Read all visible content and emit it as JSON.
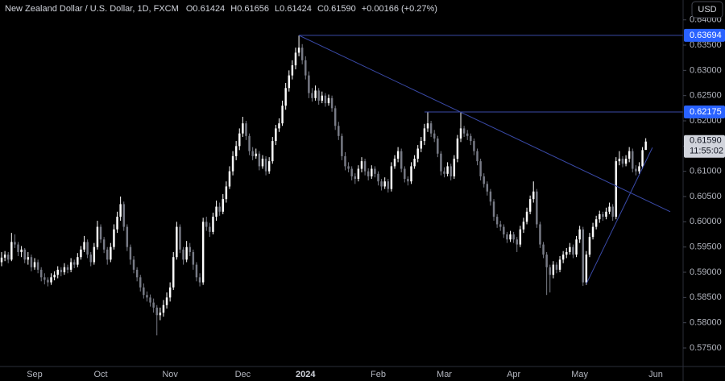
{
  "chart_data": {
    "type": "candlestick",
    "header": {
      "symbol": "New Zealand Dollar / U.S. Dollar, 1D, FXCM",
      "open": "O0.61424",
      "high": "H0.61656",
      "low": "L0.61424",
      "close": "C0.61590",
      "change": "+0.00166 (+0.27%)"
    },
    "currency": "USD",
    "up_color": "#ffffff",
    "down_color": "#787b86",
    "line_color": "#3a4aa8",
    "label_color": "#2962ff",
    "xlim": [
      -0.49,
      206.3
    ],
    "xticks": [
      {
        "value": 10,
        "label": "Sep"
      },
      {
        "value": 30,
        "label": "Oct"
      },
      {
        "value": 51,
        "label": "Nov"
      },
      {
        "value": 73,
        "label": "Dec"
      },
      {
        "value": 92,
        "label": "2024"
      },
      {
        "value": 114,
        "label": "Feb"
      },
      {
        "value": 134,
        "label": "Mar"
      },
      {
        "value": 155,
        "label": "Apr"
      },
      {
        "value": 175,
        "label": "May"
      },
      {
        "value": 198,
        "label": "Jun"
      }
    ],
    "ylim": [
      0.57133,
      0.64394
    ],
    "yticks": [
      {
        "value": 0.575,
        "label": "0.57500"
      },
      {
        "value": 0.58,
        "label": "0.58000"
      },
      {
        "value": 0.585,
        "label": "0.58500"
      },
      {
        "value": 0.59,
        "label": "0.59000"
      },
      {
        "value": 0.595,
        "label": "0.59500"
      },
      {
        "value": 0.6,
        "label": "0.60000"
      },
      {
        "value": 0.605,
        "label": "0.60500"
      },
      {
        "value": 0.61,
        "label": "0.61000"
      },
      {
        "value": 0.615,
        "label": "0.61500"
      },
      {
        "value": 0.62,
        "label": "0.62000"
      },
      {
        "value": 0.625,
        "label": "0.62500"
      },
      {
        "value": 0.63,
        "label": "0.63000"
      },
      {
        "value": 0.635,
        "label": "0.63500"
      },
      {
        "value": 0.64,
        "label": "0.64000"
      }
    ],
    "levels": [
      {
        "start": 90,
        "value": 0.63694
      },
      {
        "start": 128,
        "value": 0.62175
      }
    ],
    "trendlines": [
      {
        "from": [
          90,
          0.63694
        ],
        "to": [
          202.4,
          0.602
        ]
      },
      {
        "from": [
          177,
          0.5877
        ],
        "to": [
          197,
          0.6147
        ]
      }
    ],
    "last_price": {
      "value": 0.6159,
      "label": "0.61590"
    },
    "countdown": "11:55:02",
    "candles": [
      [
        0.592,
        0.594,
        0.5912,
        0.5929
      ],
      [
        0.5929,
        0.5942,
        0.5922,
        0.5935
      ],
      [
        0.5935,
        0.594,
        0.5918,
        0.5925
      ],
      [
        0.5925,
        0.5978,
        0.5922,
        0.596
      ],
      [
        0.596,
        0.5975,
        0.5948,
        0.5955
      ],
      [
        0.5955,
        0.596,
        0.5932,
        0.594
      ],
      [
        0.594,
        0.5952,
        0.593,
        0.5945
      ],
      [
        0.5945,
        0.5948,
        0.5918,
        0.5925
      ],
      [
        0.5925,
        0.594,
        0.5915,
        0.593
      ],
      [
        0.593,
        0.5935,
        0.5902,
        0.591
      ],
      [
        0.591,
        0.5928,
        0.5905,
        0.592
      ],
      [
        0.592,
        0.5925,
        0.5898,
        0.5905
      ],
      [
        0.5905,
        0.591,
        0.5882,
        0.589
      ],
      [
        0.589,
        0.5898,
        0.5876,
        0.5885
      ],
      [
        0.5885,
        0.589,
        0.5872,
        0.588
      ],
      [
        0.588,
        0.5898,
        0.5875,
        0.589
      ],
      [
        0.589,
        0.5902,
        0.5884,
        0.5895
      ],
      [
        0.5895,
        0.5912,
        0.5888,
        0.5905
      ],
      [
        0.5905,
        0.591,
        0.5892,
        0.59
      ],
      [
        0.59,
        0.5918,
        0.5895,
        0.591
      ],
      [
        0.591,
        0.5915,
        0.5898,
        0.5905
      ],
      [
        0.5905,
        0.5928,
        0.59,
        0.592
      ],
      [
        0.592,
        0.5925,
        0.5908,
        0.5915
      ],
      [
        0.5915,
        0.5938,
        0.591,
        0.593
      ],
      [
        0.593,
        0.5952,
        0.5925,
        0.5945
      ],
      [
        0.5945,
        0.5972,
        0.594,
        0.596
      ],
      [
        0.596,
        0.5965,
        0.5928,
        0.5935
      ],
      [
        0.5935,
        0.594,
        0.5912,
        0.592
      ],
      [
        0.592,
        0.5958,
        0.5915,
        0.595
      ],
      [
        0.595,
        0.6002,
        0.5945,
        0.599
      ],
      [
        0.599,
        0.5995,
        0.5958,
        0.5965
      ],
      [
        0.5965,
        0.597,
        0.5938,
        0.5945
      ],
      [
        0.5945,
        0.595,
        0.5915,
        0.5925
      ],
      [
        0.5925,
        0.5958,
        0.592,
        0.595
      ],
      [
        0.595,
        0.5995,
        0.5945,
        0.5985
      ],
      [
        0.5985,
        0.602,
        0.5978,
        0.601
      ],
      [
        0.601,
        0.605,
        0.6002,
        0.6035
      ],
      [
        0.6035,
        0.604,
        0.5982,
        0.599
      ],
      [
        0.599,
        0.5995,
        0.5942,
        0.595
      ],
      [
        0.595,
        0.5955,
        0.5915,
        0.5925
      ],
      [
        0.5925,
        0.5932,
        0.5898,
        0.5905
      ],
      [
        0.5905,
        0.591,
        0.5882,
        0.589
      ],
      [
        0.589,
        0.5895,
        0.5862,
        0.587
      ],
      [
        0.587,
        0.5878,
        0.5848,
        0.5855
      ],
      [
        0.5855,
        0.5862,
        0.5842,
        0.585
      ],
      [
        0.585,
        0.5856,
        0.5832,
        0.584
      ],
      [
        0.584,
        0.5848,
        0.582,
        0.583
      ],
      [
        0.583,
        0.5835,
        0.5775,
        0.5815
      ],
      [
        0.5815,
        0.583,
        0.5805,
        0.582
      ],
      [
        0.582,
        0.5845,
        0.5812,
        0.5835
      ],
      [
        0.5835,
        0.586,
        0.5828,
        0.585
      ],
      [
        0.585,
        0.588,
        0.5842,
        0.587
      ],
      [
        0.587,
        0.594,
        0.5865,
        0.593
      ],
      [
        0.593,
        0.6,
        0.5925,
        0.599
      ],
      [
        0.599,
        0.5995,
        0.5938,
        0.5945
      ],
      [
        0.5945,
        0.595,
        0.5915,
        0.5925
      ],
      [
        0.5925,
        0.5962,
        0.592,
        0.595
      ],
      [
        0.595,
        0.5958,
        0.5932,
        0.594
      ],
      [
        0.594,
        0.5945,
        0.5905,
        0.5915
      ],
      [
        0.5915,
        0.592,
        0.5882,
        0.589
      ],
      [
        0.589,
        0.5898,
        0.5872,
        0.588
      ],
      [
        0.588,
        0.6008,
        0.5875,
        0.6
      ],
      [
        0.6,
        0.601,
        0.5982,
        0.599
      ],
      [
        0.599,
        0.5998,
        0.597,
        0.598
      ],
      [
        0.598,
        0.6018,
        0.5975,
        0.601
      ],
      [
        0.601,
        0.6042,
        0.6002,
        0.603
      ],
      [
        0.603,
        0.6038,
        0.6012,
        0.602
      ],
      [
        0.602,
        0.6055,
        0.6015,
        0.6045
      ],
      [
        0.6045,
        0.608,
        0.6038,
        0.607
      ],
      [
        0.607,
        0.611,
        0.6065,
        0.61
      ],
      [
        0.61,
        0.614,
        0.6092,
        0.613
      ],
      [
        0.613,
        0.616,
        0.6122,
        0.615
      ],
      [
        0.615,
        0.6185,
        0.6142,
        0.6175
      ],
      [
        0.6175,
        0.6208,
        0.6168,
        0.6195
      ],
      [
        0.6195,
        0.62,
        0.6162,
        0.617
      ],
      [
        0.617,
        0.6175,
        0.6132,
        0.614
      ],
      [
        0.614,
        0.6148,
        0.6122,
        0.613
      ],
      [
        0.613,
        0.6145,
        0.6125,
        0.6135
      ],
      [
        0.6135,
        0.614,
        0.6102,
        0.611
      ],
      [
        0.611,
        0.6132,
        0.6105,
        0.6125
      ],
      [
        0.6125,
        0.613,
        0.6092,
        0.61
      ],
      [
        0.61,
        0.6128,
        0.6095,
        0.612
      ],
      [
        0.612,
        0.6168,
        0.6115,
        0.616
      ],
      [
        0.616,
        0.6192,
        0.6152,
        0.6185
      ],
      [
        0.6185,
        0.6205,
        0.6178,
        0.6195
      ],
      [
        0.6195,
        0.624,
        0.619,
        0.623
      ],
      [
        0.623,
        0.6275,
        0.6222,
        0.6265
      ],
      [
        0.6265,
        0.63,
        0.6258,
        0.629
      ],
      [
        0.629,
        0.632,
        0.6282,
        0.631
      ],
      [
        0.631,
        0.6345,
        0.6302,
        0.6335
      ],
      [
        0.6335,
        0.6369,
        0.6328,
        0.6345
      ],
      [
        0.6345,
        0.6352,
        0.6312,
        0.632
      ],
      [
        0.632,
        0.6328,
        0.6282,
        0.629
      ],
      [
        0.629,
        0.6298,
        0.6245,
        0.6255
      ],
      [
        0.6255,
        0.6265,
        0.6238,
        0.6245
      ],
      [
        0.6245,
        0.627,
        0.624,
        0.626
      ],
      [
        0.626,
        0.6265,
        0.6232,
        0.624
      ],
      [
        0.624,
        0.6258,
        0.6235,
        0.625
      ],
      [
        0.625,
        0.6255,
        0.6228,
        0.6235
      ],
      [
        0.6235,
        0.6252,
        0.623,
        0.6245
      ],
      [
        0.6245,
        0.625,
        0.6218,
        0.6225
      ],
      [
        0.6225,
        0.623,
        0.6182,
        0.619
      ],
      [
        0.619,
        0.6198,
        0.6162,
        0.617
      ],
      [
        0.617,
        0.6175,
        0.6122,
        0.613
      ],
      [
        0.613,
        0.6138,
        0.6102,
        0.611
      ],
      [
        0.611,
        0.6118,
        0.6098,
        0.6105
      ],
      [
        0.6105,
        0.611,
        0.6082,
        0.609
      ],
      [
        0.609,
        0.6096,
        0.6075,
        0.6085
      ],
      [
        0.6085,
        0.6112,
        0.608,
        0.6105
      ],
      [
        0.6105,
        0.6128,
        0.6098,
        0.612
      ],
      [
        0.612,
        0.6125,
        0.6092,
        0.61
      ],
      [
        0.61,
        0.6106,
        0.6082,
        0.609
      ],
      [
        0.609,
        0.6112,
        0.6085,
        0.6105
      ],
      [
        0.6105,
        0.611,
        0.6088,
        0.6095
      ],
      [
        0.6095,
        0.61,
        0.6072,
        0.608
      ],
      [
        0.608,
        0.6085,
        0.6062,
        0.607
      ],
      [
        0.607,
        0.6088,
        0.6065,
        0.608
      ],
      [
        0.608,
        0.6085,
        0.6058,
        0.6065
      ],
      [
        0.6065,
        0.6118,
        0.606,
        0.611
      ],
      [
        0.611,
        0.6132,
        0.6105,
        0.6125
      ],
      [
        0.6125,
        0.6148,
        0.6118,
        0.614
      ],
      [
        0.614,
        0.6145,
        0.6098,
        0.6105
      ],
      [
        0.6105,
        0.611,
        0.6078,
        0.6085
      ],
      [
        0.6085,
        0.609,
        0.6072,
        0.608
      ],
      [
        0.608,
        0.6118,
        0.6075,
        0.611
      ],
      [
        0.611,
        0.6132,
        0.6105,
        0.6125
      ],
      [
        0.6125,
        0.6152,
        0.6118,
        0.6145
      ],
      [
        0.6145,
        0.6168,
        0.6138,
        0.616
      ],
      [
        0.616,
        0.6194,
        0.6152,
        0.6185
      ],
      [
        0.6185,
        0.6217,
        0.6178,
        0.6195
      ],
      [
        0.6195,
        0.62,
        0.6168,
        0.6175
      ],
      [
        0.6175,
        0.6182,
        0.6158,
        0.6165
      ],
      [
        0.6165,
        0.617,
        0.6128,
        0.6135
      ],
      [
        0.6135,
        0.614,
        0.6092,
        0.61
      ],
      [
        0.61,
        0.6108,
        0.6088,
        0.6095
      ],
      [
        0.6095,
        0.6118,
        0.609,
        0.611
      ],
      [
        0.611,
        0.6115,
        0.6082,
        0.609
      ],
      [
        0.609,
        0.6132,
        0.6085,
        0.6125
      ],
      [
        0.6125,
        0.6172,
        0.6118,
        0.6165
      ],
      [
        0.6165,
        0.6218,
        0.6158,
        0.6185
      ],
      [
        0.6185,
        0.619,
        0.6168,
        0.6175
      ],
      [
        0.6175,
        0.6182,
        0.6162,
        0.617
      ],
      [
        0.617,
        0.6175,
        0.6152,
        0.616
      ],
      [
        0.616,
        0.6165,
        0.6132,
        0.614
      ],
      [
        0.614,
        0.6145,
        0.6112,
        0.612
      ],
      [
        0.612,
        0.6125,
        0.6082,
        0.609
      ],
      [
        0.609,
        0.6096,
        0.6068,
        0.6075
      ],
      [
        0.6075,
        0.608,
        0.6052,
        0.606
      ],
      [
        0.606,
        0.6065,
        0.6032,
        0.604
      ],
      [
        0.604,
        0.6045,
        0.6002,
        0.601
      ],
      [
        0.601,
        0.6015,
        0.5988,
        0.5995
      ],
      [
        0.5995,
        0.6002,
        0.5982,
        0.599
      ],
      [
        0.599,
        0.5995,
        0.5968,
        0.5975
      ],
      [
        0.5975,
        0.598,
        0.5958,
        0.5965
      ],
      [
        0.5965,
        0.5982,
        0.596,
        0.5975
      ],
      [
        0.5975,
        0.598,
        0.5958,
        0.5965
      ],
      [
        0.5965,
        0.597,
        0.594,
        0.5955
      ],
      [
        0.5955,
        0.5992,
        0.595,
        0.5985
      ],
      [
        0.5985,
        0.6008,
        0.5978,
        0.6
      ],
      [
        0.6,
        0.6028,
        0.5995,
        0.602
      ],
      [
        0.602,
        0.6052,
        0.6015,
        0.6045
      ],
      [
        0.6045,
        0.608,
        0.6038,
        0.606
      ],
      [
        0.606,
        0.6065,
        0.5988,
        0.5995
      ],
      [
        0.5995,
        0.6,
        0.5948,
        0.5955
      ],
      [
        0.5955,
        0.596,
        0.5928,
        0.5935
      ],
      [
        0.5935,
        0.594,
        0.5855,
        0.591
      ],
      [
        0.591,
        0.5915,
        0.586,
        0.5895
      ],
      [
        0.5895,
        0.5922,
        0.5888,
        0.5915
      ],
      [
        0.5915,
        0.592,
        0.5898,
        0.5905
      ],
      [
        0.5905,
        0.5932,
        0.59,
        0.5925
      ],
      [
        0.5925,
        0.5942,
        0.5918,
        0.5935
      ],
      [
        0.5935,
        0.5948,
        0.5928,
        0.594
      ],
      [
        0.594,
        0.5958,
        0.5935,
        0.595
      ],
      [
        0.595,
        0.5955,
        0.5928,
        0.5935
      ],
      [
        0.5935,
        0.5972,
        0.593,
        0.5965
      ],
      [
        0.5965,
        0.5992,
        0.5958,
        0.5985
      ],
      [
        0.5985,
        0.599,
        0.5873,
        0.588
      ],
      [
        0.588,
        0.5942,
        0.5875,
        0.5935
      ],
      [
        0.5935,
        0.5978,
        0.593,
        0.597
      ],
      [
        0.597,
        0.5998,
        0.5965,
        0.599
      ],
      [
        0.599,
        0.6012,
        0.5985,
        0.6005
      ],
      [
        0.6005,
        0.6022,
        0.5998,
        0.6015
      ],
      [
        0.6015,
        0.602,
        0.6002,
        0.601
      ],
      [
        0.601,
        0.6028,
        0.6005,
        0.602
      ],
      [
        0.602,
        0.6038,
        0.6015,
        0.603
      ],
      [
        0.603,
        0.6035,
        0.6002,
        0.601
      ],
      [
        0.601,
        0.6128,
        0.6005,
        0.612
      ],
      [
        0.612,
        0.614,
        0.6112,
        0.6125
      ],
      [
        0.6125,
        0.613,
        0.6108,
        0.6115
      ],
      [
        0.6115,
        0.6132,
        0.611,
        0.6125
      ],
      [
        0.6125,
        0.6148,
        0.6118,
        0.614
      ],
      [
        0.614,
        0.6145,
        0.6098,
        0.6105
      ],
      [
        0.6105,
        0.6112,
        0.6092,
        0.61
      ],
      [
        0.61,
        0.6118,
        0.6095,
        0.611
      ],
      [
        0.611,
        0.6148,
        0.6105,
        0.6142
      ],
      [
        0.61424,
        0.61656,
        0.61424,
        0.6159
      ]
    ]
  }
}
